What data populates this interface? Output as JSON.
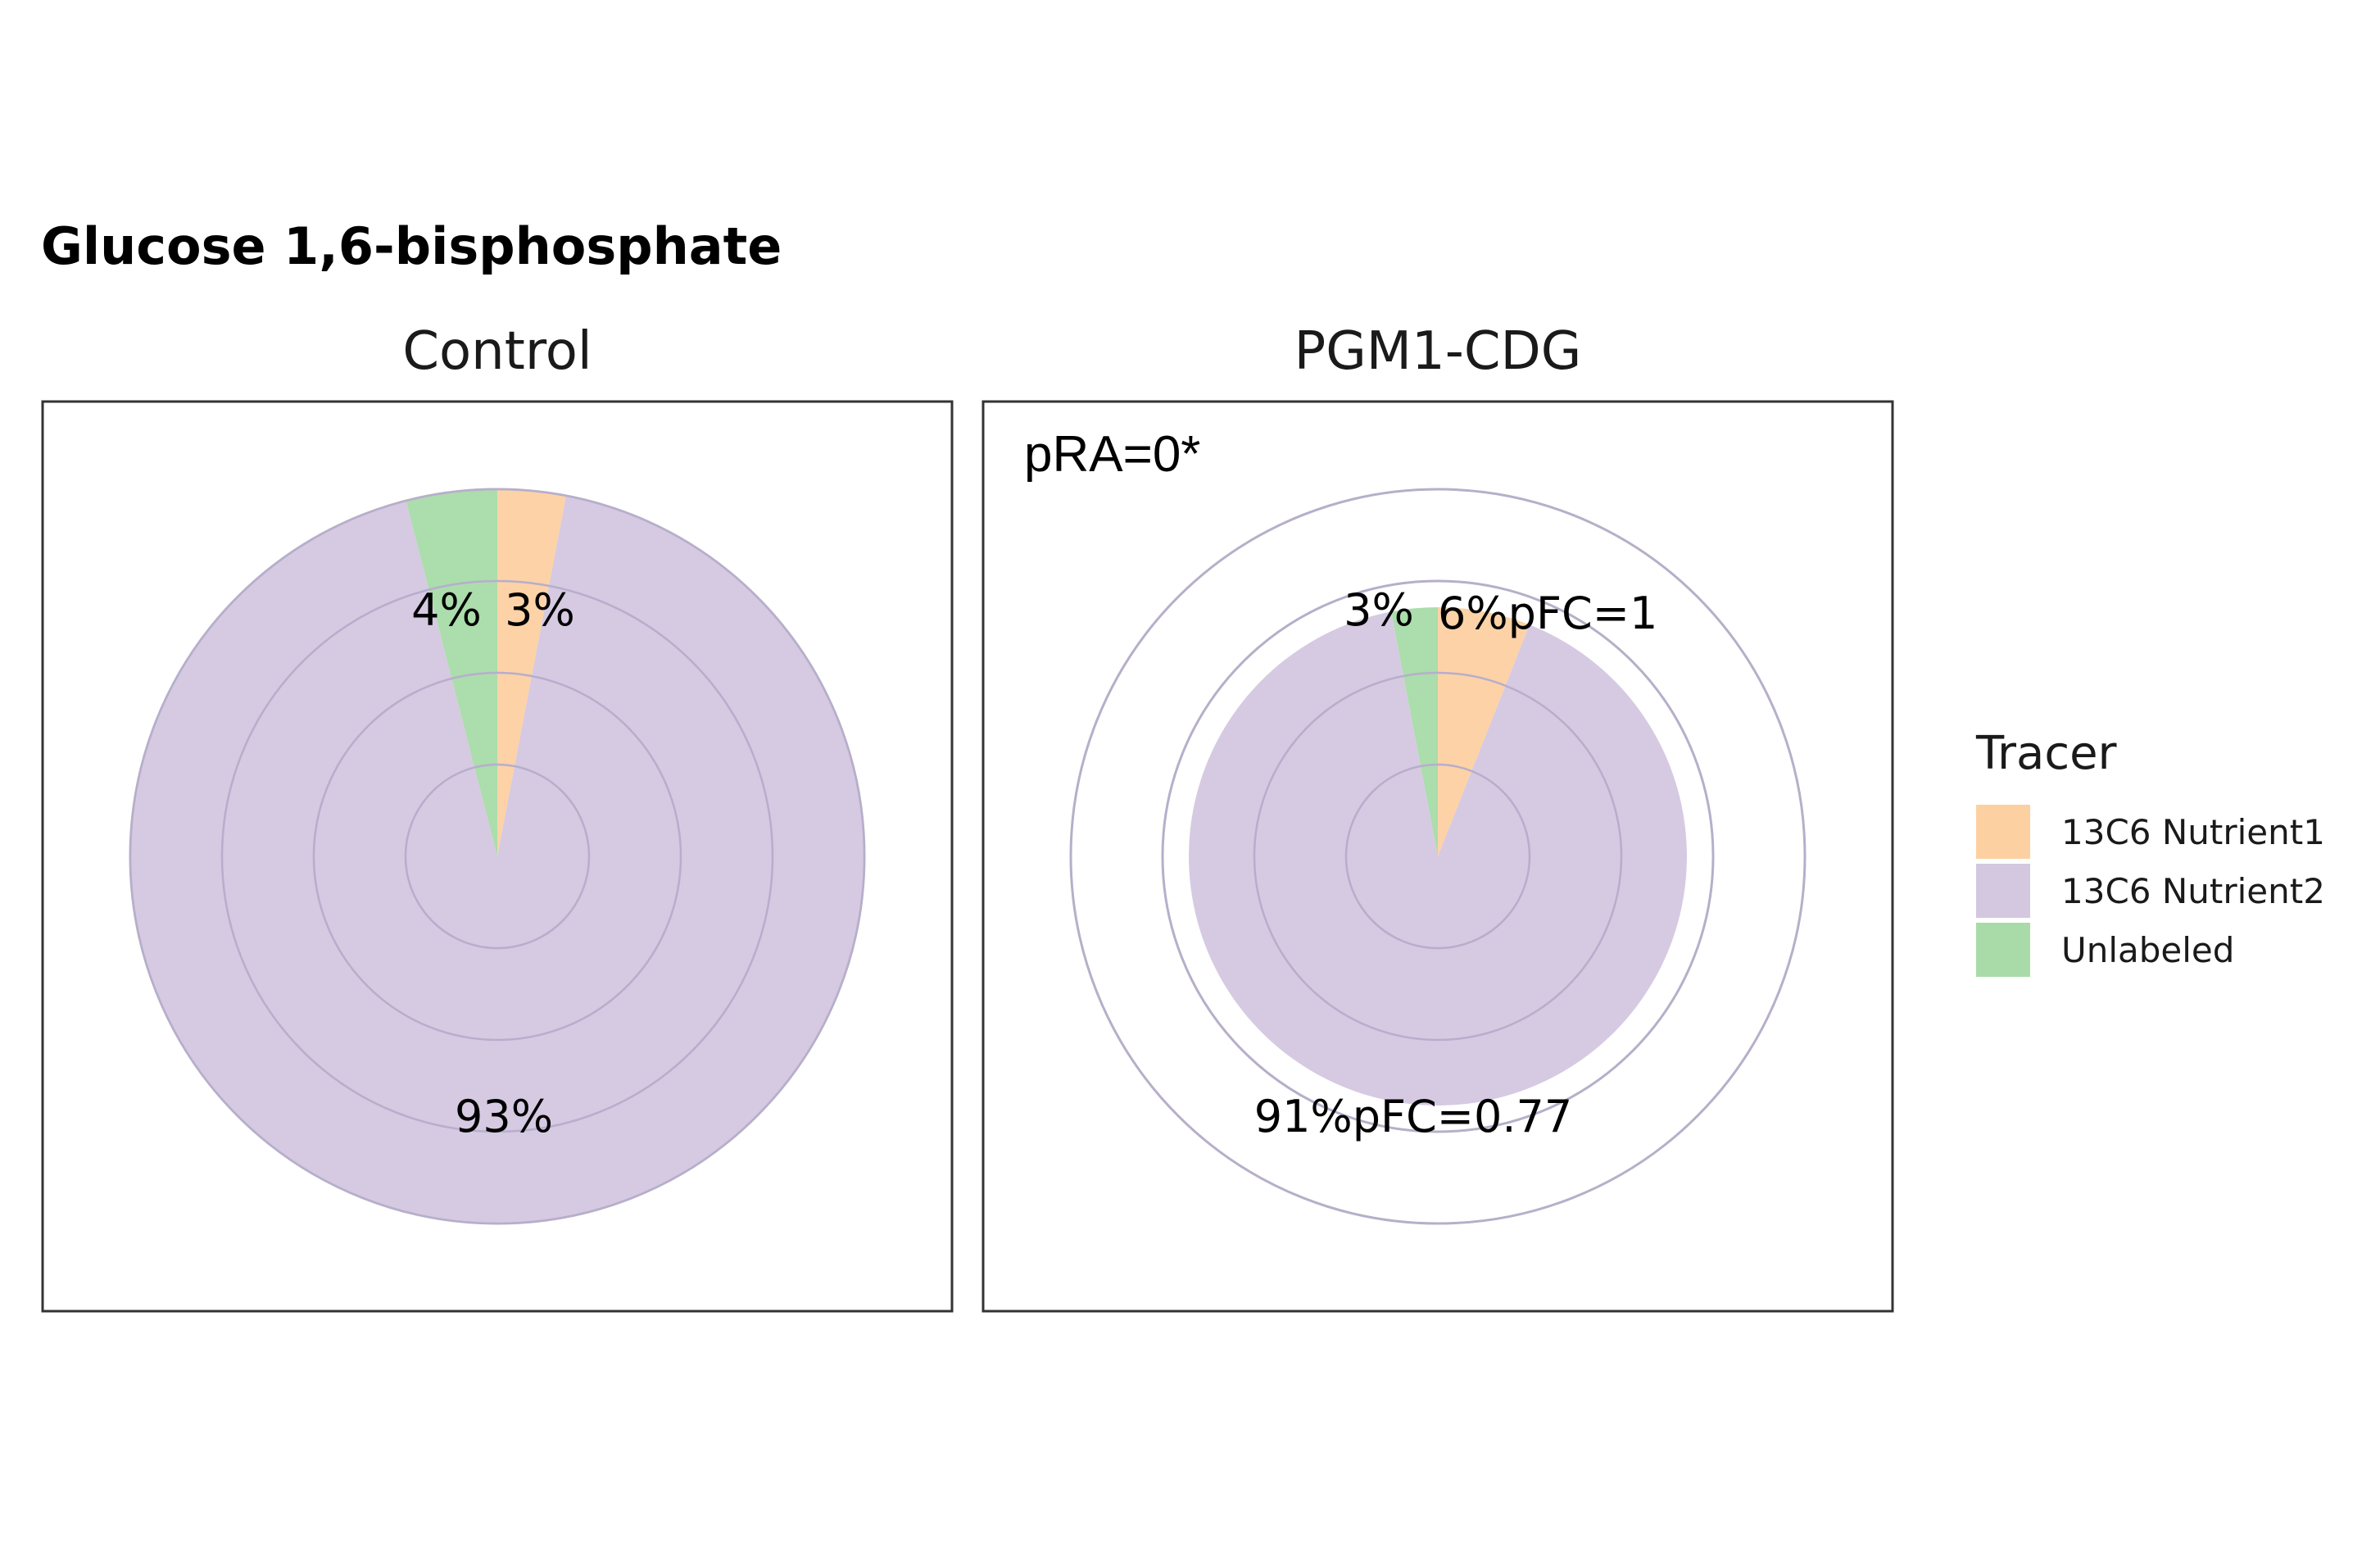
{
  "chart_data": {
    "type": "pie",
    "title": "Glucose 1,6-bisphosphate",
    "legend": {
      "title": "Tracer",
      "placement": "right",
      "entries": [
        {
          "name": "13C6 Nutrient1",
          "color": "#fdd0a2"
        },
        {
          "name": "13C6 Nutrient2",
          "color": "#d4c7e0"
        },
        {
          "name": "Unlabeled",
          "color": "#a8dba8"
        }
      ]
    },
    "panels": [
      {
        "name": "Control",
        "outer_value": 1,
        "grid_levels": [
          0.25,
          0.5,
          0.75,
          1.0
        ],
        "slices": [
          {
            "tracer": "13C6 Nutrient1",
            "value": 3,
            "label": "3%"
          },
          {
            "tracer": "13C6 Nutrient2",
            "value": 93,
            "label": "93%"
          },
          {
            "tracer": "Unlabeled",
            "value": 4,
            "label": "4%"
          }
        ],
        "annotations": []
      },
      {
        "name": "PGM1-CDG",
        "outer_value": 0.68,
        "grid_levels": [
          0.25,
          0.5,
          0.75,
          1.0
        ],
        "slices": [
          {
            "tracer": "13C6 Nutrient1",
            "value": 6,
            "label": "6%pFC=1"
          },
          {
            "tracer": "13C6 Nutrient2",
            "value": 91,
            "label": "91%pFC=0.77"
          },
          {
            "tracer": "Unlabeled",
            "value": 3,
            "label": "3%"
          }
        ],
        "annotations": [
          "pRA=0*"
        ]
      }
    ]
  }
}
